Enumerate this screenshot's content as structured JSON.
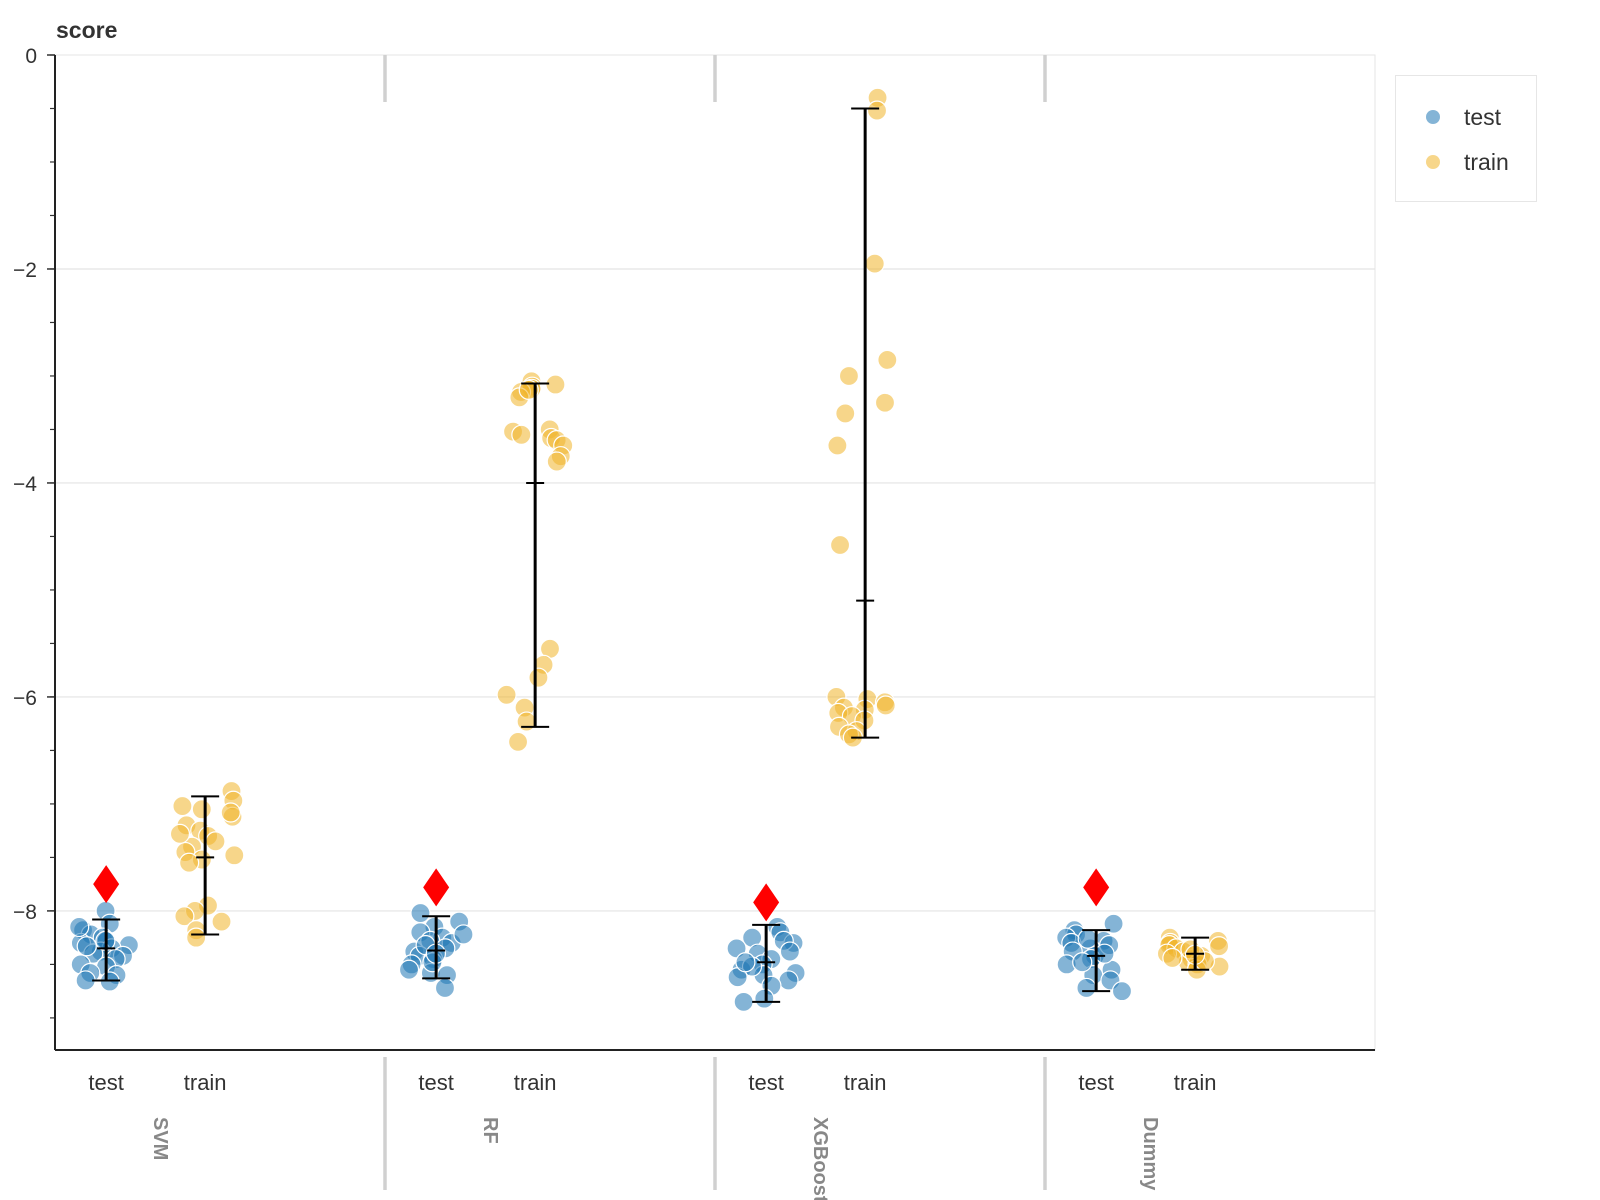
{
  "chart_data": {
    "type": "scatter",
    "title": "",
    "ylabel": "score",
    "ylim": [
      -9.3,
      0
    ],
    "yticks": [
      0,
      -2,
      -4,
      -6,
      -8
    ],
    "ytick_labels": [
      "0",
      "−2",
      "−4",
      "−6",
      "−8"
    ],
    "grid": true,
    "legend_position": "top-right",
    "legend": [
      {
        "name": "test",
        "color": "#1f77b4"
      },
      {
        "name": "train",
        "color": "#f0b429"
      }
    ],
    "groups": [
      {
        "name": "SVM",
        "marker_value": -7.75,
        "series": [
          {
            "name": "test",
            "mean": -8.35,
            "error_low": -8.65,
            "error_high": -8.08,
            "points": [
              -8.0,
              -8.12,
              -8.18,
              -8.22,
              -8.25,
              -8.28,
              -8.3,
              -8.32,
              -8.35,
              -8.38,
              -8.4,
              -8.42,
              -8.45,
              -8.5,
              -8.52,
              -8.58,
              -8.6,
              -8.65,
              -8.66,
              -8.28,
              -8.33,
              -8.15
            ]
          },
          {
            "name": "train",
            "mean": -7.5,
            "error_low": -8.22,
            "error_high": -6.93,
            "points": [
              -6.88,
              -6.97,
              -7.02,
              -7.05,
              -7.12,
              -7.2,
              -7.25,
              -7.3,
              -7.35,
              -7.4,
              -7.45,
              -7.48,
              -7.52,
              -7.55,
              -7.95,
              -8.0,
              -8.05,
              -8.1,
              -8.18,
              -8.25,
              -7.28,
              -7.08
            ]
          }
        ]
      },
      {
        "name": "RF",
        "marker_value": -7.78,
        "series": [
          {
            "name": "test",
            "mean": -8.37,
            "error_low": -8.63,
            "error_high": -8.05,
            "points": [
              -8.02,
              -8.1,
              -8.15,
              -8.2,
              -8.25,
              -8.28,
              -8.3,
              -8.35,
              -8.38,
              -8.42,
              -8.45,
              -8.5,
              -8.55,
              -8.58,
              -8.6,
              -8.72,
              -8.22,
              -8.32,
              -8.48,
              -8.4
            ]
          },
          {
            "name": "train",
            "mean": -4.0,
            "error_low": -6.28,
            "error_high": -3.07,
            "points": [
              -3.05,
              -3.08,
              -3.1,
              -3.12,
              -3.15,
              -3.2,
              -3.5,
              -3.52,
              -3.55,
              -3.58,
              -3.6,
              -3.65,
              -3.75,
              -3.8,
              -5.55,
              -5.7,
              -5.82,
              -5.98,
              -6.1,
              -6.23,
              -6.42,
              -3.13
            ]
          }
        ]
      },
      {
        "name": "XGBoost",
        "marker_value": -7.92,
        "series": [
          {
            "name": "test",
            "mean": -8.48,
            "error_low": -8.85,
            "error_high": -8.13,
            "points": [
              -8.15,
              -8.2,
              -8.25,
              -8.3,
              -8.35,
              -8.4,
              -8.45,
              -8.5,
              -8.55,
              -8.58,
              -8.6,
              -8.65,
              -8.7,
              -8.82,
              -8.85,
              -8.28,
              -8.38,
              -8.52,
              -8.62,
              -8.48
            ]
          },
          {
            "name": "train",
            "mean": -5.1,
            "error_low": -6.38,
            "error_high": -0.5,
            "points": [
              -0.4,
              -0.52,
              -1.95,
              -2.85,
              -3.0,
              -3.25,
              -3.35,
              -3.65,
              -4.58,
              -6.0,
              -6.02,
              -6.05,
              -6.08,
              -6.1,
              -6.12,
              -6.15,
              -6.18,
              -6.22,
              -6.28,
              -6.32,
              -6.35,
              -6.38
            ]
          }
        ]
      },
      {
        "name": "Dummy",
        "marker_value": -7.78,
        "series": [
          {
            "name": "test",
            "mean": -8.42,
            "error_low": -8.75,
            "error_high": -8.18,
            "points": [
              -8.12,
              -8.18,
              -8.22,
              -8.25,
              -8.28,
              -8.3,
              -8.35,
              -8.38,
              -8.42,
              -8.45,
              -8.5,
              -8.55,
              -8.6,
              -8.65,
              -8.72,
              -8.75,
              -8.32,
              -8.4,
              -8.48,
              -8.26
            ]
          },
          {
            "name": "train",
            "mean": -8.4,
            "error_low": -8.55,
            "error_high": -8.25,
            "points": [
              -8.25,
              -8.28,
              -8.3,
              -8.32,
              -8.35,
              -8.38,
              -8.4,
              -8.42,
              -8.45,
              -8.48,
              -8.5,
              -8.52,
              -8.55,
              -8.36,
              -8.44,
              -8.33,
              -8.47,
              -8.41
            ]
          }
        ]
      }
    ]
  }
}
